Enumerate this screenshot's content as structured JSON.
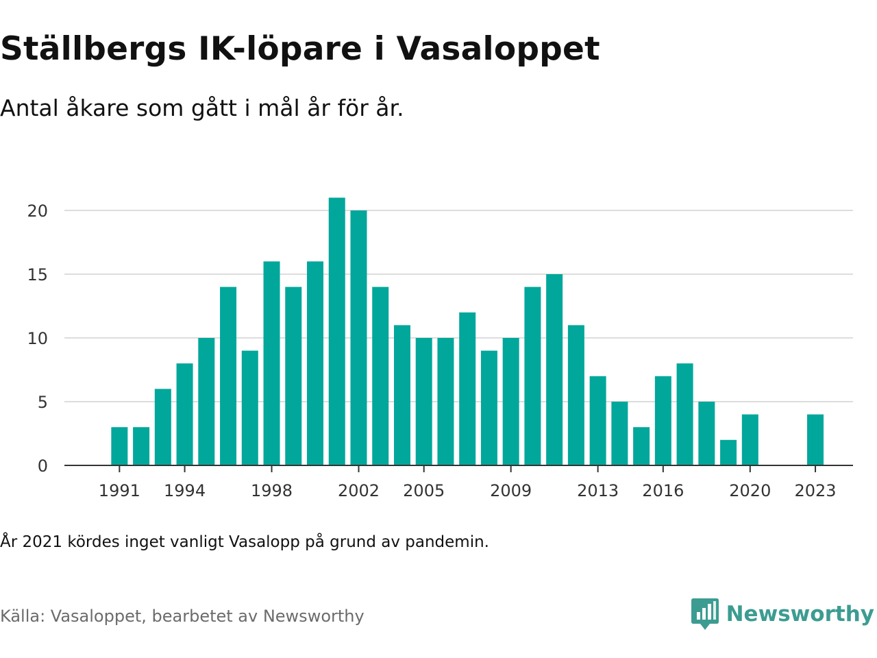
{
  "header": {
    "title": "Ställbergs IK-löpare i Vasaloppet",
    "subtitle": "Antal åkare som gått i mål år för år."
  },
  "footer": {
    "note": "År 2021 kördes inget vanligt Vasalopp på grund av pandemin.",
    "source": "Källa: Vasaloppet, bearbetet av Newsworthy",
    "brand": "Newsworthy"
  },
  "colors": {
    "bar": "#02a79b",
    "grid": "#dddddd",
    "axis": "#333333",
    "brand": "#3c9c91"
  },
  "icons": {
    "brand_logo": "newsworthy-logo-icon"
  },
  "chart_data": {
    "type": "bar",
    "x": [
      1991,
      1992,
      1993,
      1994,
      1995,
      1996,
      1997,
      1998,
      1999,
      2000,
      2001,
      2002,
      2003,
      2004,
      2005,
      2006,
      2007,
      2008,
      2009,
      2010,
      2011,
      2012,
      2013,
      2014,
      2015,
      2016,
      2017,
      2018,
      2019,
      2020,
      2023
    ],
    "values": [
      3,
      3,
      6,
      8,
      10,
      14,
      9,
      16,
      14,
      16,
      21,
      20,
      14,
      11,
      10,
      10,
      12,
      9,
      10,
      14,
      15,
      11,
      7,
      5,
      3,
      7,
      8,
      5,
      2,
      4,
      4
    ],
    "x_ticks": [
      1991,
      1994,
      1998,
      2002,
      2005,
      2009,
      2013,
      2016,
      2020,
      2023
    ],
    "y_ticks": [
      0,
      5,
      10,
      15,
      20
    ],
    "xlim": [
      1989,
      2025
    ],
    "ylim": [
      0,
      21
    ],
    "grid": true
  }
}
